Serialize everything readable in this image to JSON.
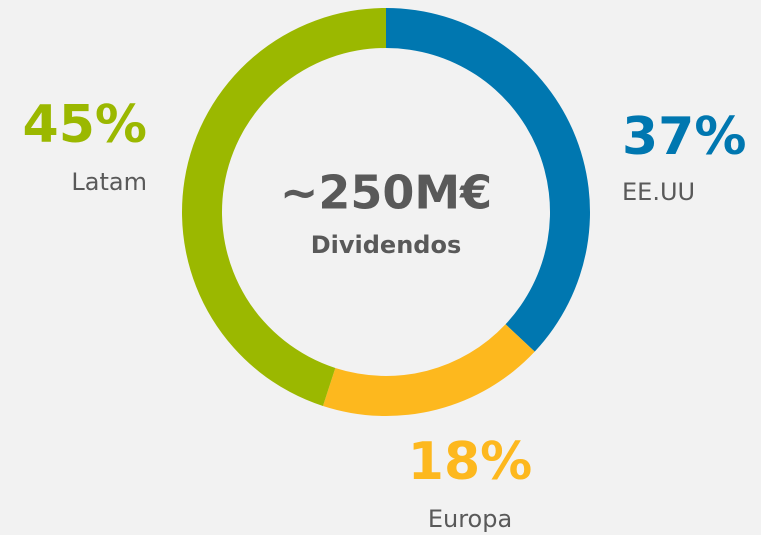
{
  "chart_data": {
    "type": "donut",
    "center_text": "~250M€",
    "center_subtext": "Dividendos",
    "categories": [
      "EE.UU",
      "Europa",
      "Latam"
    ],
    "values": [
      37,
      18,
      45
    ],
    "value_labels": [
      "37%",
      "18%",
      "45%"
    ],
    "colors": [
      "#0077b0",
      "#fdb81e",
      "#9bb800"
    ]
  }
}
